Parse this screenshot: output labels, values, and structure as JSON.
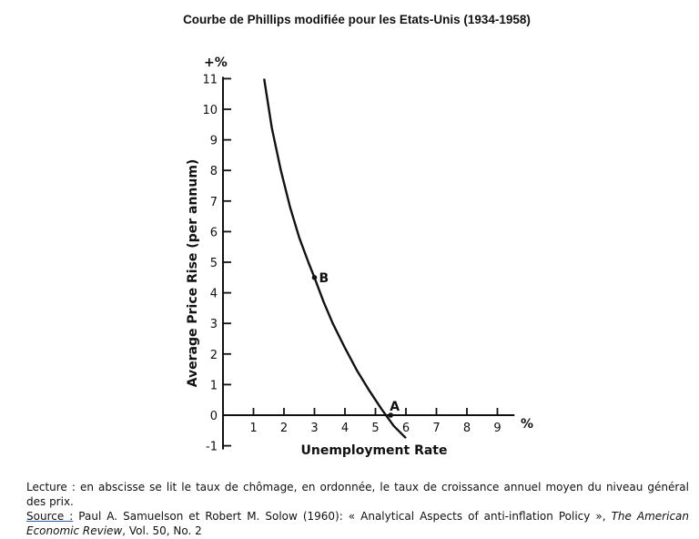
{
  "title": "Courbe de Phillips modifiée pour les Etats-Unis (1934-1958)",
  "chart_data": {
    "type": "line",
    "xlabel": "Unemployment Rate",
    "x_unit": "%",
    "ylabel": "Average Price Rise (per annum)",
    "y_unit": "+%",
    "xlim": [
      0,
      9.5
    ],
    "ylim": [
      -1,
      11
    ],
    "x_ticks": [
      1,
      2,
      3,
      4,
      5,
      6,
      7,
      8,
      9
    ],
    "y_ticks": [
      -1,
      0,
      1,
      2,
      3,
      4,
      5,
      6,
      7,
      8,
      9,
      10,
      11
    ],
    "grid": false,
    "series": [
      {
        "x": [
          1.35,
          1.6,
          1.9,
          2.2,
          2.5,
          2.8,
          3.0,
          3.3,
          3.6,
          4.0,
          4.4,
          4.8,
          5.2,
          5.6,
          6.0
        ],
        "y": [
          11.0,
          9.4,
          8.0,
          6.8,
          5.8,
          5.0,
          4.5,
          3.7,
          3.0,
          2.2,
          1.45,
          0.8,
          0.2,
          -0.35,
          -0.75
        ]
      }
    ],
    "annotations": [
      {
        "label": "A",
        "x": 5.5,
        "y": 0
      },
      {
        "label": "B",
        "x": 3.0,
        "y": 4.5
      }
    ]
  },
  "caption": {
    "lecture": "Lecture : en abscisse se lit le taux de chômage, en ordonnée, le taux de croissance annuel moyen du niveau général des prix.",
    "source_label": "Source :",
    "source_text": " Paul A. Samuelson et Robert M. Solow (1960): « Analytical Aspects of anti-inflation Policy », ",
    "journal": "The American Economic Review",
    "volume": ", Vol. 50, No. 2"
  }
}
